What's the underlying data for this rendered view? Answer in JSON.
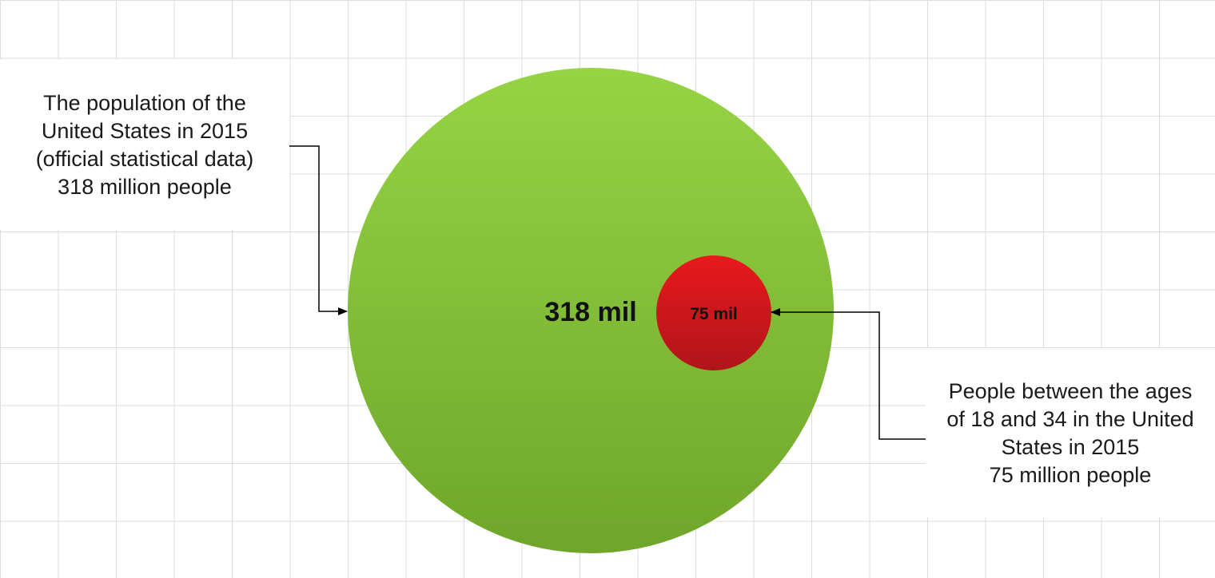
{
  "big_circle": {
    "label": "318 mil",
    "color_top": "#96d444",
    "color_bottom": "#6fa62a"
  },
  "small_circle": {
    "label": "75 mil",
    "color_top": "#e8191d",
    "color_bottom": "#b0151a"
  },
  "left_annotation": {
    "lines": [
      "The population of the",
      "United States in 2015",
      "(official statistical data)",
      "318 million people"
    ]
  },
  "right_annotation": {
    "lines": [
      "People between the ages",
      "of 18 and 34 in the United",
      "States in 2015",
      "75 million people"
    ]
  }
}
